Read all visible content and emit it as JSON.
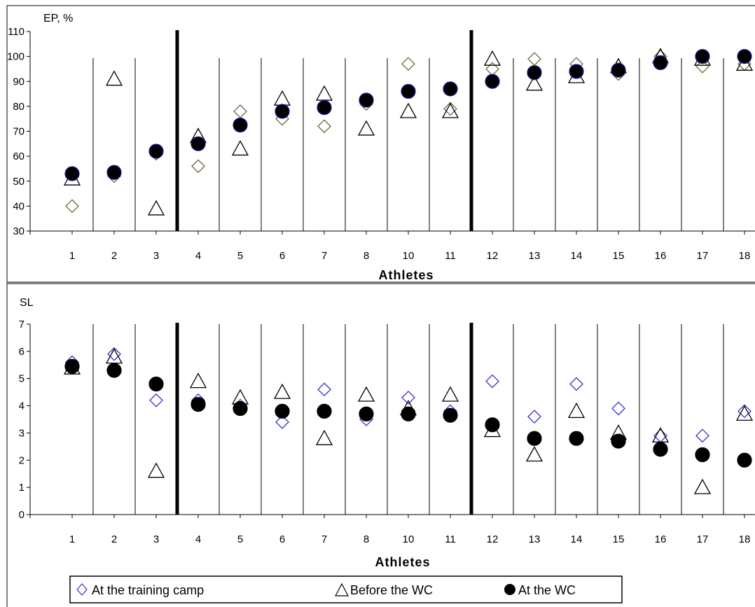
{
  "chart_data": [
    {
      "type": "scatter",
      "title": "",
      "ylabel": "EP, %",
      "xlabel": "Athletes",
      "ylim": [
        30,
        110
      ],
      "yticks": [
        30,
        40,
        50,
        60,
        70,
        80,
        90,
        100,
        110
      ],
      "grid": "vertical lines between categories",
      "categories": [
        "1",
        "2",
        "3",
        "4",
        "5",
        "6",
        "7",
        "8",
        "10",
        "11",
        "12",
        "13",
        "14",
        "15",
        "16",
        "17",
        "18"
      ],
      "group_dividers_after": [
        "3",
        "11"
      ],
      "series": [
        {
          "name": "At the training camp",
          "marker": "diamond",
          "values": [
            40,
            52,
            61,
            56,
            78,
            75,
            72,
            81,
            97,
            79,
            95,
            99,
            97,
            93,
            100,
            96,
            97
          ]
        },
        {
          "name": "Before the WC",
          "marker": "triangle",
          "values": [
            51,
            91,
            39,
            68,
            63,
            83,
            85,
            71,
            78,
            78,
            99,
            89,
            92,
            96,
            100,
            99,
            97
          ]
        },
        {
          "name": "At the WC",
          "marker": "circle",
          "values": [
            53,
            53.5,
            62,
            65,
            72.5,
            78,
            79.5,
            82.5,
            86,
            87,
            90,
            93.5,
            94,
            94.5,
            97.5,
            100,
            100
          ]
        }
      ]
    },
    {
      "type": "scatter",
      "title": "",
      "ylabel": "SL",
      "xlabel": "Athletes",
      "ylim": [
        0,
        7
      ],
      "yticks": [
        0,
        1,
        2,
        3,
        4,
        5,
        6,
        7
      ],
      "grid": "vertical lines between categories",
      "categories": [
        "1",
        "2",
        "3",
        "4",
        "5",
        "6",
        "7",
        "8",
        "10",
        "11",
        "12",
        "13",
        "14",
        "15",
        "16",
        "17",
        "18"
      ],
      "group_dividers_after": [
        "3",
        "11"
      ],
      "series": [
        {
          "name": "At the training camp",
          "marker": "diamond",
          "values": [
            5.6,
            5.9,
            4.2,
            4.2,
            4.0,
            3.4,
            4.6,
            3.5,
            4.3,
            3.8,
            4.9,
            3.6,
            4.8,
            3.9,
            2.9,
            2.9,
            3.8
          ]
        },
        {
          "name": "Before the WC",
          "marker": "triangle",
          "values": [
            5.4,
            5.8,
            1.6,
            4.9,
            4.3,
            4.5,
            2.8,
            4.4,
            3.9,
            4.4,
            3.1,
            2.2,
            3.8,
            3.0,
            2.9,
            1.0,
            3.7
          ]
        },
        {
          "name": "At the WC",
          "marker": "circle",
          "values": [
            5.45,
            5.3,
            4.8,
            4.05,
            3.9,
            3.8,
            3.8,
            3.7,
            3.7,
            3.65,
            3.3,
            2.8,
            2.8,
            2.7,
            2.4,
            2.2,
            2.0
          ]
        }
      ]
    }
  ],
  "legend": {
    "placement": "bottom",
    "items": [
      {
        "marker": "diamond",
        "label": "At the training camp"
      },
      {
        "marker": "triangle",
        "label": "Before the WC"
      },
      {
        "marker": "circle",
        "label": "At the WC"
      }
    ]
  },
  "colors": {
    "diamond_top": "#6b6b3a",
    "diamond_bottom": "#3333cc",
    "triangle": "#000000",
    "circle_fill": "#000000",
    "circle_stroke_top": "#1a1aa0",
    "axis": "#000000"
  }
}
